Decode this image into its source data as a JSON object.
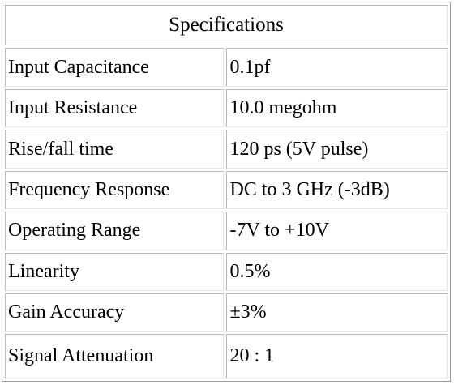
{
  "table": {
    "title": "Specifications",
    "rows": [
      {
        "label": "Input Capacitance",
        "value": "0.1pf"
      },
      {
        "label": "Input Resistance",
        "value": "10.0 megohm"
      },
      {
        "label": "Rise/fall time",
        "value": "120 ps (5V pulse)"
      },
      {
        "label": "Frequency Response",
        "value": "DC to 3 GHz (-3dB)"
      },
      {
        "label": "Operating Range",
        "value": "-7V to +10V"
      },
      {
        "label": "Linearity",
        "value": "0.5%"
      },
      {
        "label": "Gain Accuracy",
        "value": "±3%"
      },
      {
        "label": "Signal Attenuation",
        "value": "20 : 1"
      }
    ]
  }
}
